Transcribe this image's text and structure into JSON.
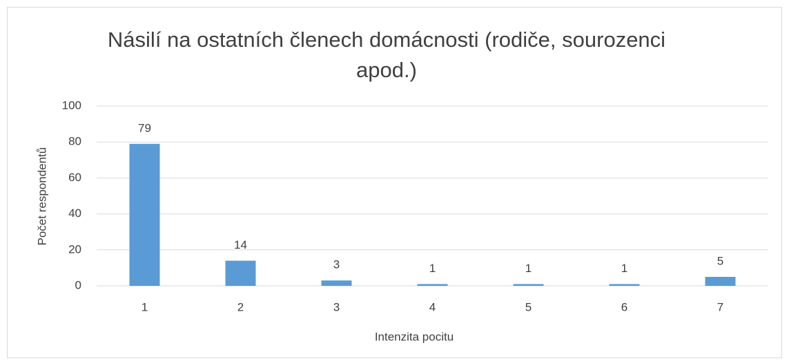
{
  "chart_data": {
    "type": "bar",
    "title": "Násilí na ostatních členech domácnosti (rodiče, sourozenci apod.)",
    "x_label": "Intenzita pocitu",
    "y_label": "Počet respondentů",
    "categories": [
      "1",
      "2",
      "3",
      "4",
      "5",
      "6",
      "7"
    ],
    "values": [
      79,
      14,
      3,
      1,
      1,
      1,
      5
    ],
    "color": "#5b9bd5",
    "ylim": [
      0,
      100
    ],
    "yticks": [
      0,
      20,
      40,
      60,
      80,
      100
    ],
    "grid": true
  }
}
